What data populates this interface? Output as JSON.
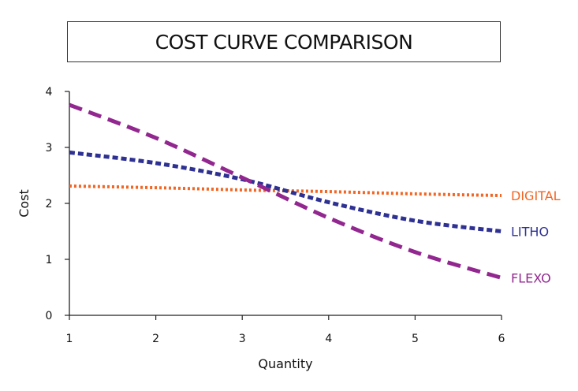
{
  "chart_data": {
    "type": "line",
    "title": "COST CURVE COMPARISON",
    "xlabel": "Quantity",
    "ylabel": "Cost",
    "xlim": [
      1,
      6
    ],
    "ylim": [
      0,
      4
    ],
    "x_ticks": [
      "1",
      "2",
      "3",
      "4",
      "5",
      "6"
    ],
    "y_ticks": [
      "0",
      "1",
      "2",
      "3",
      "4"
    ],
    "grid": false,
    "legend": "inline labels at right end of lines",
    "x": [
      1,
      2,
      3,
      4,
      5,
      6
    ],
    "series": [
      {
        "name": "DIGITAL",
        "color": "#f26522",
        "style": "dotted",
        "values": [
          2.31,
          2.28,
          2.24,
          2.21,
          2.17,
          2.14
        ]
      },
      {
        "name": "LITHO",
        "color": "#2e3192",
        "style": "short-dash",
        "values": [
          2.91,
          2.72,
          2.43,
          2.02,
          1.69,
          1.5
        ]
      },
      {
        "name": "FLEXO",
        "color": "#92278f",
        "style": "long-dash",
        "values": [
          3.76,
          3.17,
          2.46,
          1.74,
          1.13,
          0.67
        ]
      }
    ]
  }
}
